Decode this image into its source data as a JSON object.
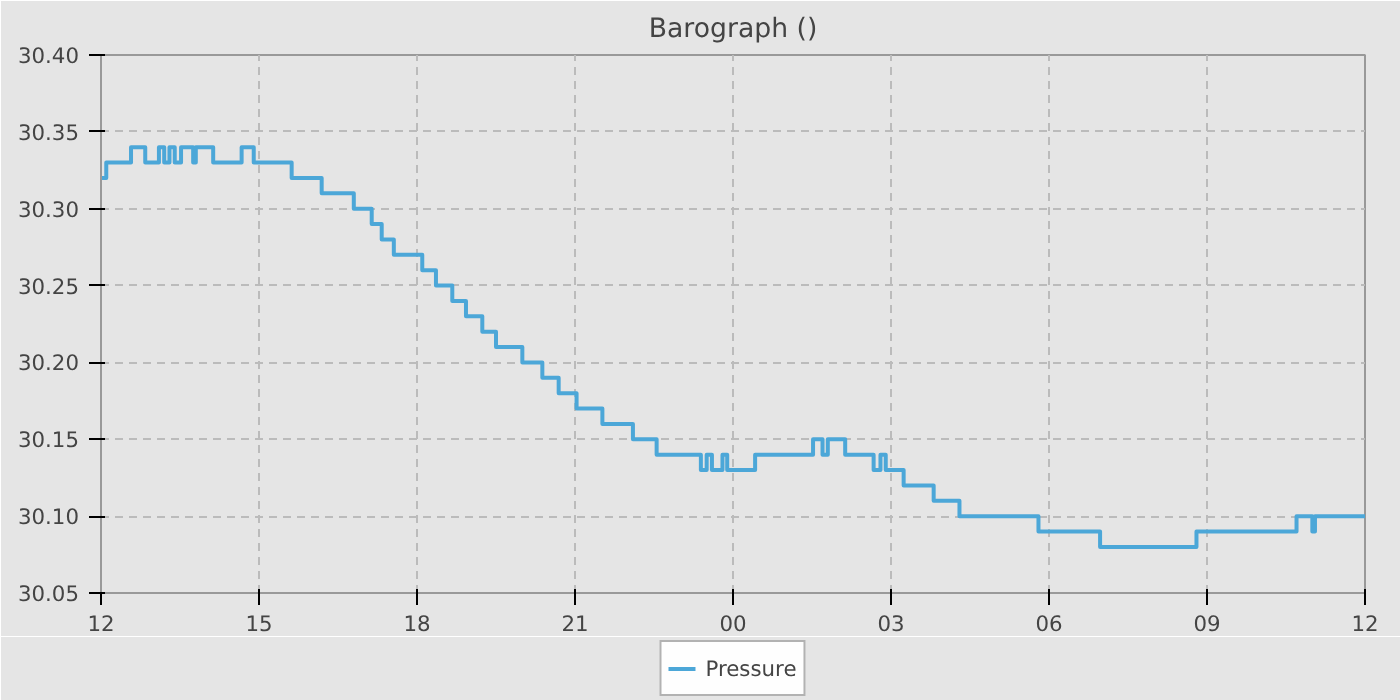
{
  "chart_data": {
    "type": "step",
    "title": "Barograph ()",
    "x": [
      12.0,
      12.1,
      12.57,
      12.84,
      13.1,
      13.2,
      13.3,
      13.4,
      13.52,
      13.75,
      13.8,
      14.13,
      14.67,
      14.9,
      15.62,
      16.19,
      16.45,
      16.8,
      17.14,
      17.33,
      17.56,
      18.1,
      18.36,
      18.67,
      18.93,
      19.24,
      19.5,
      20.0,
      20.38,
      20.69,
      21.03,
      21.52,
      22.1,
      22.55,
      23.39,
      23.5,
      23.6,
      23.8,
      23.89,
      24.42,
      25.52,
      25.7,
      25.8,
      26.13,
      26.67,
      26.8,
      26.9,
      27.24,
      27.81,
      28.3,
      29.8,
      29.94,
      30.97,
      32.8,
      34.7,
      35.0,
      35.05,
      36.0
    ],
    "series": [
      {
        "name": "Pressure",
        "color": "#4ca7d8",
        "values": [
          30.32,
          30.33,
          30.34,
          30.33,
          30.34,
          30.33,
          30.34,
          30.33,
          30.34,
          30.33,
          30.34,
          30.33,
          30.34,
          30.33,
          30.32,
          30.31,
          30.31,
          30.3,
          30.29,
          30.28,
          30.27,
          30.26,
          30.25,
          30.24,
          30.23,
          30.22,
          30.21,
          30.2,
          30.19,
          30.18,
          30.17,
          30.16,
          30.15,
          30.14,
          30.13,
          30.14,
          30.13,
          30.14,
          30.13,
          30.14,
          30.15,
          30.14,
          30.15,
          30.14,
          30.13,
          30.14,
          30.13,
          30.12,
          30.11,
          30.1,
          30.09,
          30.09,
          30.08,
          30.09,
          30.1,
          30.09,
          30.1,
          30.1
        ]
      }
    ],
    "xlim": [
      12,
      36
    ],
    "ylim": [
      30.05,
      30.4
    ],
    "xticks": [
      {
        "value": 12,
        "label": "12"
      },
      {
        "value": 15,
        "label": "15"
      },
      {
        "value": 18,
        "label": "18"
      },
      {
        "value": 21,
        "label": "21"
      },
      {
        "value": 24,
        "label": "00"
      },
      {
        "value": 27,
        "label": "03"
      },
      {
        "value": 30,
        "label": "06"
      },
      {
        "value": 33,
        "label": "09"
      },
      {
        "value": 36,
        "label": "12"
      }
    ],
    "yticks": [
      {
        "value": 30.05,
        "label": "30.05"
      },
      {
        "value": 30.1,
        "label": "30.10"
      },
      {
        "value": 30.15,
        "label": "30.15"
      },
      {
        "value": 30.2,
        "label": "30.20"
      },
      {
        "value": 30.25,
        "label": "30.25"
      },
      {
        "value": 30.3,
        "label": "30.30"
      },
      {
        "value": 30.35,
        "label": "30.35"
      },
      {
        "value": 30.4,
        "label": "30.40"
      }
    ],
    "grid": true,
    "legend": "bottom",
    "line_style": "solid"
  }
}
